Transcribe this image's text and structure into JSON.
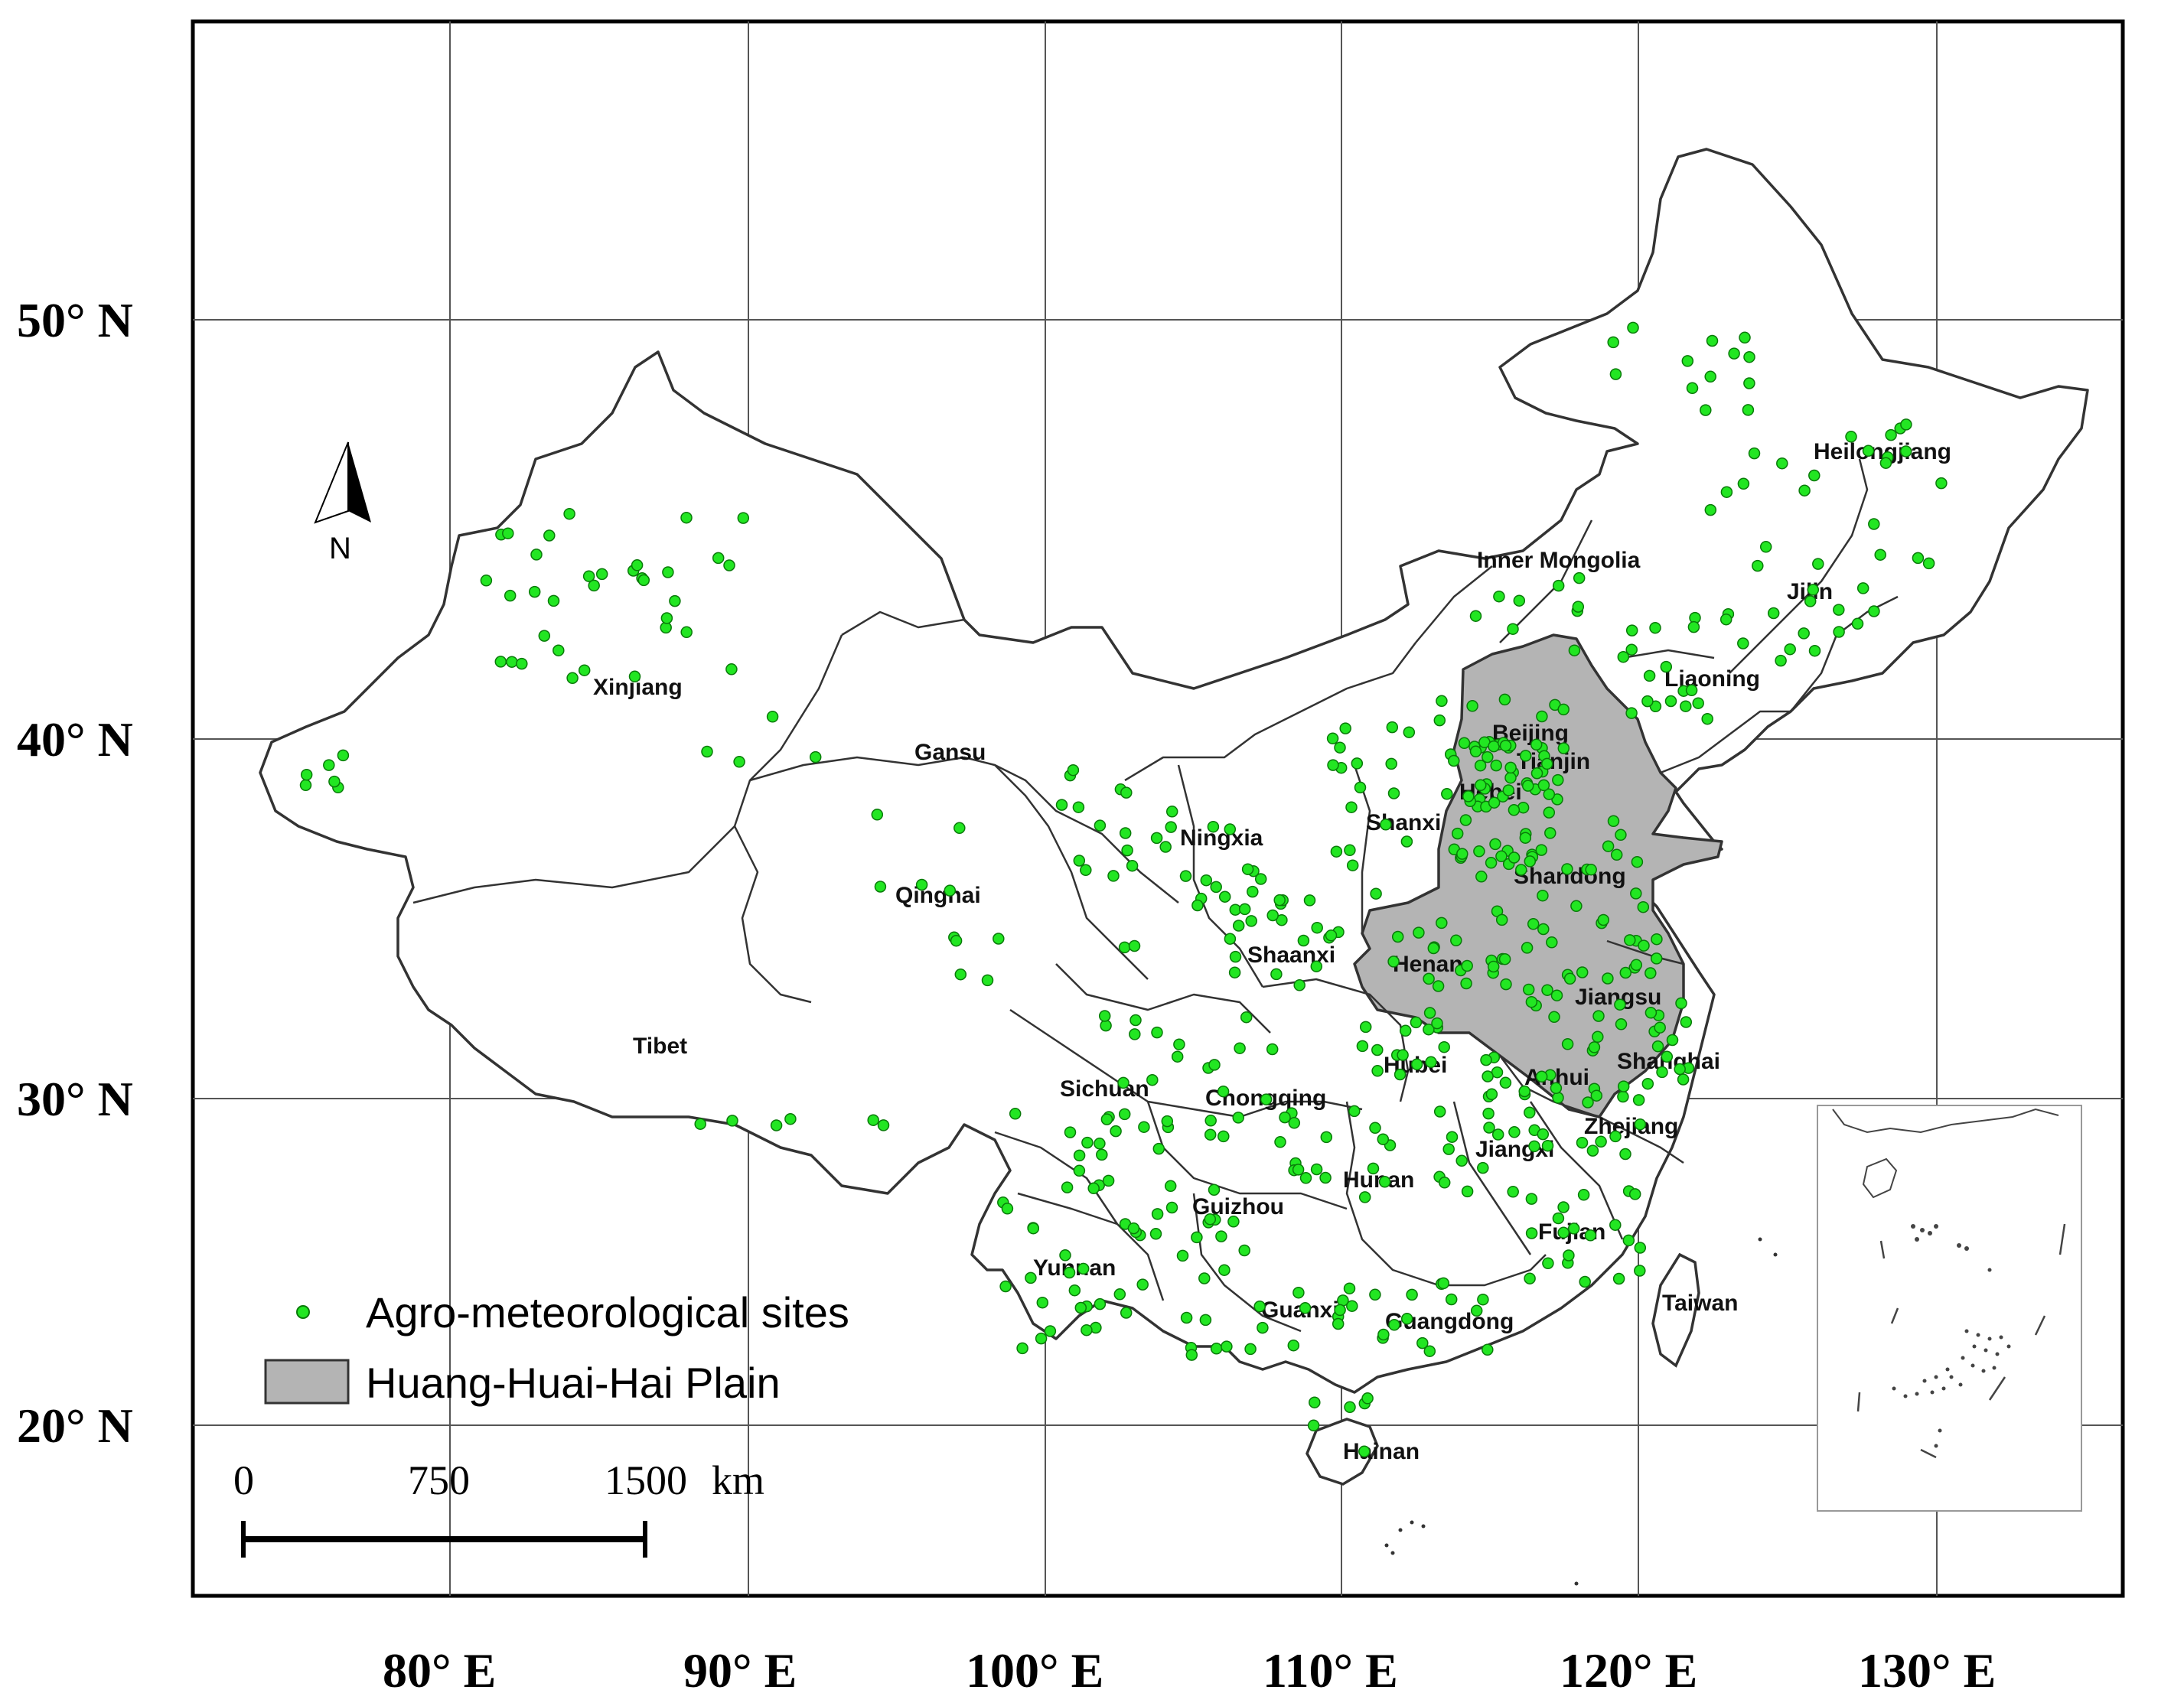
{
  "colors": {
    "site": "#22e622",
    "site_stroke": "#0a7a0a",
    "plain_fill": "#b4b4b4",
    "boundary": "#333333",
    "graticule": "#555555",
    "frame": "#000000"
  },
  "graticule": {
    "longitudes": [
      "80° E",
      "90° E",
      "100° E",
      "110° E",
      "120° E",
      "130° E"
    ],
    "latitudes": [
      "50° N",
      "40° N",
      "30° N",
      "20° N"
    ]
  },
  "provinces": [
    {
      "name": "Heilongjiang"
    },
    {
      "name": "Inner Mongolia"
    },
    {
      "name": "Jilin"
    },
    {
      "name": "Liaoning"
    },
    {
      "name": "Xinjiang"
    },
    {
      "name": "Beijing"
    },
    {
      "name": "Tianjin"
    },
    {
      "name": "Gansu"
    },
    {
      "name": "Hebei"
    },
    {
      "name": "Shanxi"
    },
    {
      "name": "Ningxia"
    },
    {
      "name": "Shandong"
    },
    {
      "name": "Qinghai"
    },
    {
      "name": "Henan"
    },
    {
      "name": "Shaanxi"
    },
    {
      "name": "Jiangsu"
    },
    {
      "name": "Tibet"
    },
    {
      "name": "Hubei"
    },
    {
      "name": "Anhui"
    },
    {
      "name": "Shanghai"
    },
    {
      "name": "Sichuan"
    },
    {
      "name": "Chongqing"
    },
    {
      "name": "Zhejiang"
    },
    {
      "name": "Jiangxi"
    },
    {
      "name": "Hunan"
    },
    {
      "name": "Guizhou"
    },
    {
      "name": "Fujian"
    },
    {
      "name": "Yunnan"
    },
    {
      "name": "Taiwan"
    },
    {
      "name": "Guanxi"
    },
    {
      "name": "Guangdong"
    },
    {
      "name": "Hainan"
    }
  ],
  "north_arrow": {
    "label": "N"
  },
  "legend": {
    "sites_label": "Agro-meteorological sites",
    "plain_label": "Huang-Huai-Hai Plain"
  },
  "scale_bar": {
    "ticks": [
      "0",
      "750",
      "1500"
    ],
    "unit": "km"
  },
  "site_count_note": ""
}
